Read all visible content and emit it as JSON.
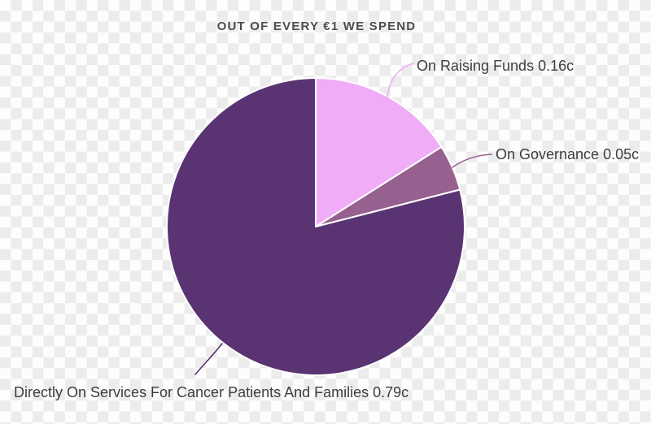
{
  "canvas": {
    "checker_light": "#fdfdfd",
    "checker_dark": "#ececec",
    "title_color": "#4d4d4d",
    "label_color": "#3d3d3d"
  },
  "chart_data": {
    "type": "pie",
    "title": "OUT OF EVERY €1 WE SPEND",
    "total": 1.0,
    "units": "euro cents (c) per €1",
    "start_angle": "12 o'clock",
    "direction": "clockwise",
    "legend_position": "none",
    "label_style": "external labels with curved leader lines",
    "background": "transparent checkerboard",
    "slice_border_color": "#ffffff",
    "slices": [
      {
        "id": "raising-funds",
        "name": "On Raising Funds",
        "value": 0.16,
        "label": "On Raising Funds 0.16c",
        "color": "#f1acf8"
      },
      {
        "id": "governance",
        "name": "On Governance",
        "value": 0.05,
        "label": "On Governance 0.05c",
        "color": "#96618f"
      },
      {
        "id": "services",
        "name": "Directly On Services For Cancer Patients And Families",
        "value": 0.79,
        "label": "Directly On Services For Cancer Patients And Families 0.79c",
        "color": "#5a3472"
      }
    ]
  }
}
